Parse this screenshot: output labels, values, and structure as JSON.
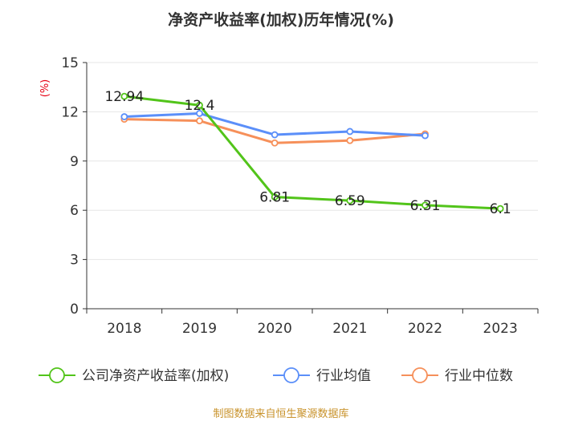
{
  "chart_data": {
    "type": "line",
    "title": "净资产收益率(加权)历年情况(%)",
    "ylabel": "(%)",
    "categories": [
      "2018",
      "2019",
      "2020",
      "2021",
      "2022",
      "2023"
    ],
    "ylim": [
      0,
      15
    ],
    "yticks": [
      "0",
      "3",
      "6",
      "9",
      "12",
      "15"
    ],
    "series": [
      {
        "name": "公司净资产收益率(加权)",
        "color": "#52c41a",
        "values": [
          12.94,
          12.4,
          6.81,
          6.59,
          6.31,
          6.1
        ],
        "labels": [
          "12.94",
          "12.4",
          "6.81",
          "6.59",
          "6.31",
          "6.1"
        ]
      },
      {
        "name": "行业均值",
        "color": "#5b8ff9",
        "values": [
          11.7,
          11.9,
          10.6,
          10.8,
          10.55,
          null
        ]
      },
      {
        "name": "行业中位数",
        "color": "#f6905a",
        "values": [
          11.55,
          11.45,
          10.1,
          10.25,
          10.65,
          null
        ]
      }
    ],
    "grid": true,
    "legend": "bottom"
  },
  "source": "制图数据来自恒生聚源数据库"
}
